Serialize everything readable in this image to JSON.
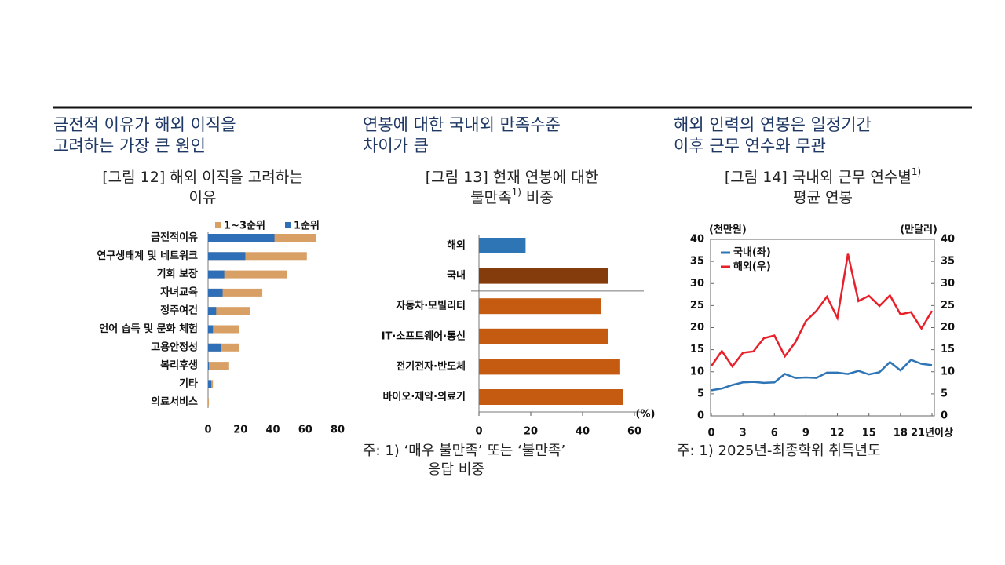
{
  "chart_data": [
    {
      "type": "bar",
      "orientation": "horizontal",
      "overlap": true,
      "headline": [
        "금전적 이유가 해외 이직을",
        "고려하는 가장 큰 원인"
      ],
      "title_lines": [
        [
          {
            "text": "[그림 12] 해외 이직을 고려하는"
          }
        ],
        [
          {
            "text": "이유"
          }
        ]
      ],
      "categories": [
        "금전적이유",
        "연구생태계 및 네트워크",
        "기회 보장",
        "자녀교육",
        "정주여건",
        "언어 습득 및 문화 체험",
        "고용안정성",
        "복리후생",
        "기타",
        "의료서비스"
      ],
      "series": [
        {
          "name": "1~3순위",
          "color": "#d9a066",
          "values": [
            66.5,
            61,
            48.5,
            33.5,
            26,
            19,
            19,
            13,
            3,
            0.5
          ]
        },
        {
          "name": "1순위",
          "color": "#2e6fb7",
          "values": [
            41,
            23,
            10,
            9,
            5,
            3,
            8,
            0.5,
            2,
            0
          ]
        }
      ],
      "xlim": [
        0,
        80
      ],
      "xticks": [
        0,
        20,
        40,
        60,
        80
      ]
    },
    {
      "type": "bar",
      "orientation": "horizontal",
      "headline": [
        "연봉에 대한 국내외 만족수준",
        "차이가 큼"
      ],
      "title_lines": [
        [
          {
            "text": "[그림 13] 현재 연봉에 대한"
          }
        ],
        [
          {
            "text": "불만족"
          },
          {
            "text": "1)",
            "sup": true
          },
          {
            "text": "비중"
          }
        ]
      ],
      "categories": [
        "해외",
        "국내",
        "자동차·모빌리티",
        "IT·소프트웨어·통신",
        "전기전자·반도체",
        "바이오·제약·의료기"
      ],
      "values": [
        18,
        50,
        47,
        50,
        54.5,
        55.5
      ],
      "colors": [
        "#2e75b6",
        "#843c0c",
        "#c55a11",
        "#c55a11",
        "#c55a11",
        "#c55a11"
      ],
      "xlim": [
        0,
        60
      ],
      "xticks": [
        0,
        20,
        40,
        60
      ],
      "x_unit": "(%)",
      "notes": [
        "주: 1) ‘매우 불만족’ 또는 ‘불만족’",
        "응답 비중"
      ]
    },
    {
      "type": "line",
      "headline": [
        "해외 인력의 연봉은 일정기간",
        "이후 근무 연수와 무관"
      ],
      "title_lines": [
        [
          {
            "text": "[그림 14] 국내외 근무 연수별"
          },
          {
            "text": "1)",
            "sup": true
          }
        ],
        [
          {
            "text": "평균 연봉"
          }
        ]
      ],
      "x": [
        0,
        1,
        2,
        3,
        4,
        5,
        6,
        7,
        8,
        9,
        10,
        11,
        12,
        13,
        14,
        15,
        16,
        17,
        18,
        19,
        20,
        21
      ],
      "xlim": [
        0,
        21
      ],
      "xticks": [
        0,
        3,
        6,
        9,
        12,
        15,
        18,
        {
          "value": 21,
          "label": "21년이상"
        }
      ],
      "ylim": [
        0,
        40
      ],
      "yticks": [
        0,
        5,
        10,
        15,
        20,
        25,
        30,
        35,
        40
      ],
      "y2lim": [
        0,
        40
      ],
      "y2ticks": [
        0,
        5,
        10,
        15,
        20,
        25,
        30,
        35,
        40
      ],
      "ylabel": "(천만원)",
      "y2label": "(만달러)",
      "series": [
        {
          "name": "국내(좌)",
          "color": "#2e75b6",
          "values": [
            5.8,
            6.2,
            7.0,
            7.6,
            7.7,
            7.5,
            7.6,
            9.5,
            8.6,
            8.7,
            8.6,
            9.8,
            9.8,
            9.5,
            10.2,
            9.4,
            9.9,
            12.2,
            10.3,
            12.7,
            11.8,
            11.5
          ]
        },
        {
          "name": "해외(우)",
          "color": "#e8202a",
          "axis": "y2",
          "values": [
            11.3,
            14.7,
            11.2,
            14.3,
            14.6,
            17.6,
            18.2,
            13.5,
            16.7,
            21.5,
            23.8,
            27.0,
            22.2,
            36.7,
            26.0,
            27.2,
            24.9,
            27.3,
            23.0,
            23.5,
            19.8,
            23.8
          ]
        }
      ],
      "notes": [
        "주: 1) 2025년-최종학위 취득년도"
      ]
    }
  ]
}
